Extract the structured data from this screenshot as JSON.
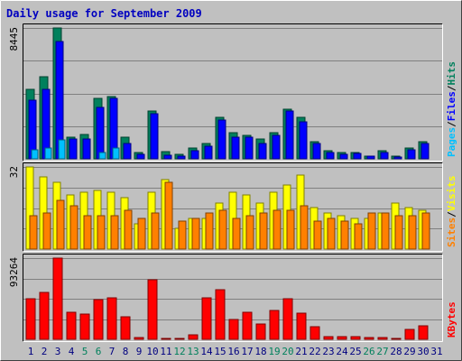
{
  "title": "Daily usage for September 2009",
  "colors": {
    "background": "#c0c0c0",
    "title": "#0000c0",
    "hits": "#00805c",
    "files": "#0000ff",
    "pages": "#00c0ff",
    "visits": "#ffff00",
    "sites": "#ff8000",
    "kbytes": "#ff0000",
    "weekend_day": "#00805c",
    "weekday": "#000080"
  },
  "chart_data": [
    {
      "type": "bar",
      "panel": "hits-files-pages",
      "max_label": "8445",
      "ylim": [
        0,
        8445
      ],
      "legend": [
        {
          "name": "Pages",
          "color": "#00c0ff"
        },
        {
          "name": "Files",
          "color": "#0000ff"
        },
        {
          "name": "Hits",
          "color": "#00805c"
        }
      ],
      "categories": [
        "1",
        "2",
        "3",
        "4",
        "5",
        "6",
        "7",
        "8",
        "9",
        "10",
        "11",
        "12",
        "13",
        "14",
        "15",
        "16",
        "17",
        "18",
        "19",
        "20",
        "21",
        "22",
        "23",
        "24",
        "25",
        "26",
        "27",
        "28",
        "29",
        "30",
        "31"
      ],
      "series": [
        {
          "name": "Hits",
          "values": [
            4500,
            5300,
            8445,
            1400,
            1600,
            3900,
            4000,
            1400,
            400,
            3100,
            450,
            300,
            700,
            1000,
            2700,
            1700,
            1500,
            1300,
            1700,
            3200,
            2700,
            1100,
            500,
            400,
            400,
            200,
            500,
            150,
            700,
            1100,
            0
          ]
        },
        {
          "name": "Files",
          "values": [
            3800,
            4500,
            7600,
            1300,
            1300,
            3300,
            3900,
            1000,
            300,
            2900,
            250,
            150,
            500,
            800,
            2500,
            1400,
            1400,
            1000,
            1500,
            3100,
            2400,
            1000,
            400,
            300,
            350,
            150,
            400,
            100,
            600,
            1000,
            0
          ]
        },
        {
          "name": "Pages",
          "values": [
            600,
            700,
            1200,
            0,
            0,
            400,
            700,
            0,
            0,
            0,
            0,
            0,
            0,
            0,
            0,
            0,
            0,
            0,
            0,
            0,
            0,
            0,
            0,
            0,
            0,
            0,
            0,
            0,
            0,
            0,
            0
          ]
        }
      ]
    },
    {
      "type": "bar",
      "panel": "visits-sites",
      "max_label": "32",
      "ylim": [
        0,
        32
      ],
      "legend": [
        {
          "name": "Sites",
          "color": "#ff8000"
        },
        {
          "name": "Visits",
          "color": "#ffff00"
        }
      ],
      "categories": [
        "1",
        "2",
        "3",
        "4",
        "5",
        "6",
        "7",
        "8",
        "9",
        "10",
        "11",
        "12",
        "13",
        "14",
        "15",
        "16",
        "17",
        "18",
        "19",
        "20",
        "21",
        "22",
        "23",
        "24",
        "25",
        "26",
        "27",
        "28",
        "29",
        "30",
        "31"
      ],
      "series": [
        {
          "name": "Visits",
          "values": [
            32,
            28,
            26,
            21,
            22,
            23,
            22,
            20,
            10,
            22,
            27,
            8,
            12,
            12,
            18,
            22,
            21,
            18,
            22,
            25,
            29,
            16,
            14,
            13,
            12,
            12,
            14,
            18,
            16,
            15,
            0
          ]
        },
        {
          "name": "Sites",
          "values": [
            13,
            14,
            19,
            17,
            13,
            13,
            13,
            15,
            12,
            14,
            26,
            11,
            12,
            14,
            15,
            12,
            13,
            14,
            15,
            15,
            17,
            11,
            12,
            11,
            10,
            14,
            14,
            13,
            13,
            14,
            0
          ]
        }
      ]
    },
    {
      "type": "bar",
      "panel": "kbytes",
      "max_label": "93264",
      "ylim": [
        0,
        93264
      ],
      "legend": [
        {
          "name": "KBytes",
          "color": "#ff0000"
        }
      ],
      "categories": [
        "1",
        "2",
        "3",
        "4",
        "5",
        "6",
        "7",
        "8",
        "9",
        "10",
        "11",
        "12",
        "13",
        "14",
        "15",
        "16",
        "17",
        "18",
        "19",
        "20",
        "21",
        "22",
        "23",
        "24",
        "25",
        "26",
        "27",
        "28",
        "29",
        "30",
        "31"
      ],
      "series": [
        {
          "name": "KBytes",
          "values": [
            47000,
            54000,
            93264,
            31000,
            29000,
            46000,
            48000,
            26000,
            2000,
            68000,
            1500,
            1000,
            5000,
            48000,
            57000,
            23000,
            31000,
            18000,
            33000,
            47000,
            30000,
            15000,
            3000,
            3000,
            3000,
            2000,
            2000,
            1000,
            11000,
            16000,
            0
          ]
        }
      ]
    }
  ],
  "x_labels": [
    {
      "label": "1",
      "weekend": false
    },
    {
      "label": "2",
      "weekend": false
    },
    {
      "label": "3",
      "weekend": false
    },
    {
      "label": "4",
      "weekend": false
    },
    {
      "label": "5",
      "weekend": true
    },
    {
      "label": "6",
      "weekend": true
    },
    {
      "label": "7",
      "weekend": false
    },
    {
      "label": "8",
      "weekend": false
    },
    {
      "label": "9",
      "weekend": false
    },
    {
      "label": "10",
      "weekend": false
    },
    {
      "label": "11",
      "weekend": false
    },
    {
      "label": "12",
      "weekend": true
    },
    {
      "label": "13",
      "weekend": true
    },
    {
      "label": "14",
      "weekend": false
    },
    {
      "label": "15",
      "weekend": false
    },
    {
      "label": "16",
      "weekend": false
    },
    {
      "label": "17",
      "weekend": false
    },
    {
      "label": "18",
      "weekend": false
    },
    {
      "label": "19",
      "weekend": true
    },
    {
      "label": "20",
      "weekend": true
    },
    {
      "label": "21",
      "weekend": false
    },
    {
      "label": "22",
      "weekend": false
    },
    {
      "label": "23",
      "weekend": false
    },
    {
      "label": "24",
      "weekend": false
    },
    {
      "label": "25",
      "weekend": false
    },
    {
      "label": "26",
      "weekend": true
    },
    {
      "label": "27",
      "weekend": true
    },
    {
      "label": "28",
      "weekend": false
    },
    {
      "label": "29",
      "weekend": false
    },
    {
      "label": "30",
      "weekend": false
    },
    {
      "label": "31",
      "weekend": false
    }
  ]
}
